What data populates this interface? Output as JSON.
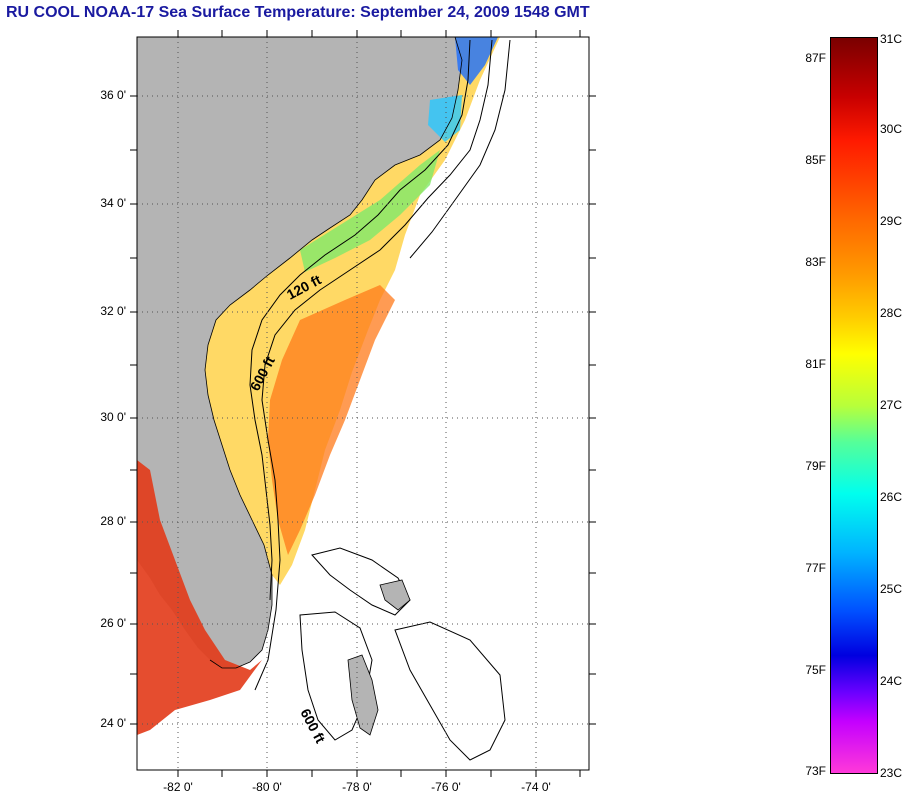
{
  "title": "RU COOL  NOAA-17  Sea Surface Temperature:  September 24, 2009 1548 GMT",
  "map": {
    "lat_labels": [
      "36 0'",
      "34 0'",
      "32 0'",
      "30 0'",
      "28 0'",
      "26 0'",
      "24 0'"
    ],
    "lon_labels": [
      "-82 0'",
      "-80 0'",
      "-78 0'",
      "-76 0'",
      "-74 0'"
    ],
    "contour_labels": [
      "120 ft",
      "600 ft",
      "600 ft"
    ],
    "colors": {
      "land": "#b4b4b4",
      "water": "#ffffff"
    }
  },
  "colorbar": {
    "fahrenheit": [
      "87F",
      "85F",
      "83F",
      "81F",
      "79F",
      "77F",
      "75F",
      "73F"
    ],
    "celsius": [
      "31C",
      "30C",
      "29C",
      "28C",
      "27C",
      "26C",
      "25C",
      "24C",
      "23C"
    ]
  }
}
